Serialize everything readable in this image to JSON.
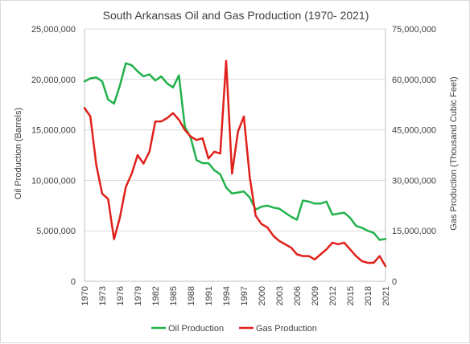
{
  "chart_data": {
    "type": "line",
    "title": "South Arkansas Oil and Gas Production (1970- 2021)",
    "xlabel": "",
    "ylabel_left": "Oil Production (Barrels)",
    "ylabel_right": "Gas Production (Thousand Cubic Feet)",
    "ylim_left": [
      0,
      25000000
    ],
    "ylim_right": [
      0,
      75000000
    ],
    "y_ticks_left": [
      "0",
      "5,000,000",
      "10,000,000",
      "15,000,000",
      "20,000,000",
      "25,000,000"
    ],
    "y_ticks_right": [
      "0",
      "15,000,000",
      "30,000,000",
      "45,000,000",
      "60,000,000",
      "75,000,000"
    ],
    "x_ticks": [
      "1970",
      "1973",
      "1976",
      "1979",
      "1982",
      "1985",
      "1988",
      "1991",
      "1994",
      "1997",
      "2000",
      "2003",
      "2006",
      "2009",
      "2012",
      "2015",
      "2018",
      "2021"
    ],
    "grid": "horizontal",
    "legend_position": "bottom",
    "x": [
      1970,
      1971,
      1972,
      1973,
      1974,
      1975,
      1976,
      1977,
      1978,
      1979,
      1980,
      1981,
      1982,
      1983,
      1984,
      1985,
      1986,
      1987,
      1988,
      1989,
      1990,
      1991,
      1992,
      1993,
      1994,
      1995,
      1996,
      1997,
      1998,
      1999,
      2000,
      2001,
      2002,
      2003,
      2004,
      2005,
      2006,
      2007,
      2008,
      2009,
      2010,
      2011,
      2012,
      2013,
      2014,
      2015,
      2016,
      2017,
      2018,
      2019,
      2020,
      2021
    ],
    "series": [
      {
        "name": "Oil Production",
        "axis": "left",
        "color": "#21b24b",
        "values": [
          19800000,
          20100000,
          20200000,
          19800000,
          18000000,
          17600000,
          19400000,
          21600000,
          21400000,
          20800000,
          20300000,
          20500000,
          19900000,
          20300000,
          19600000,
          19200000,
          20400000,
          15300000,
          14200000,
          12000000,
          11700000,
          11700000,
          11000000,
          10600000,
          9300000,
          8700000,
          8800000,
          8900000,
          8300000,
          7100000,
          7400000,
          7500000,
          7300000,
          7200000,
          6800000,
          6400000,
          6100000,
          8000000,
          7900000,
          7700000,
          7700000,
          7900000,
          6600000,
          6700000,
          6800000,
          6300000,
          5500000,
          5300000,
          5000000,
          4800000,
          4100000,
          4200000
        ]
      },
      {
        "name": "Gas Production",
        "axis": "right",
        "color": "#e0201b",
        "values": [
          51500000,
          49000000,
          34500000,
          26000000,
          24500000,
          12500000,
          19000000,
          28000000,
          32000000,
          37500000,
          35000000,
          38500000,
          47500000,
          47500000,
          48500000,
          50000000,
          48000000,
          45000000,
          43000000,
          42000000,
          42500000,
          36500000,
          38500000,
          38000000,
          65500000,
          32000000,
          44500000,
          49000000,
          31000000,
          19500000,
          17000000,
          16000000,
          13500000,
          12000000,
          11000000,
          10000000,
          8000000,
          7500000,
          7500000,
          6500000,
          8000000,
          9500000,
          11500000,
          11000000,
          11500000,
          9500000,
          7500000,
          6000000,
          5500000,
          5500000,
          7500000,
          4500000
        ]
      }
    ]
  }
}
